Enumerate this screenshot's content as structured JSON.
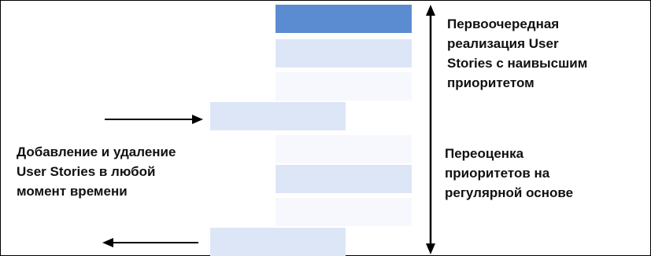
{
  "texts": {
    "top_right": "Первоочередная\nреализация User\nStories с наивысшим\nприоритетом",
    "left_middle": "Добавление и удаление\nUser Stories в любой\nмомент времени",
    "bottom_right": "Переоценка\nприоритетов на\nрегулярной основе"
  },
  "colors": {
    "top_story": "#5b8bd0",
    "story_medium": "#dde6f7",
    "story_light": "#eef2fb",
    "story_faint": "#f6f8fd",
    "arrow": "#000000"
  },
  "backlog_items": [
    {
      "shade": "#5b8bd0"
    },
    {
      "shade": "#dde6f7"
    },
    {
      "shade": "#f6f8fd"
    },
    {
      "shade": "#dde6f7"
    },
    {
      "shade": "#f6f8fd"
    },
    {
      "shade": "#dde6f7"
    },
    {
      "shade": "#f6f8fd"
    },
    {
      "shade": "#dde6f7"
    }
  ]
}
